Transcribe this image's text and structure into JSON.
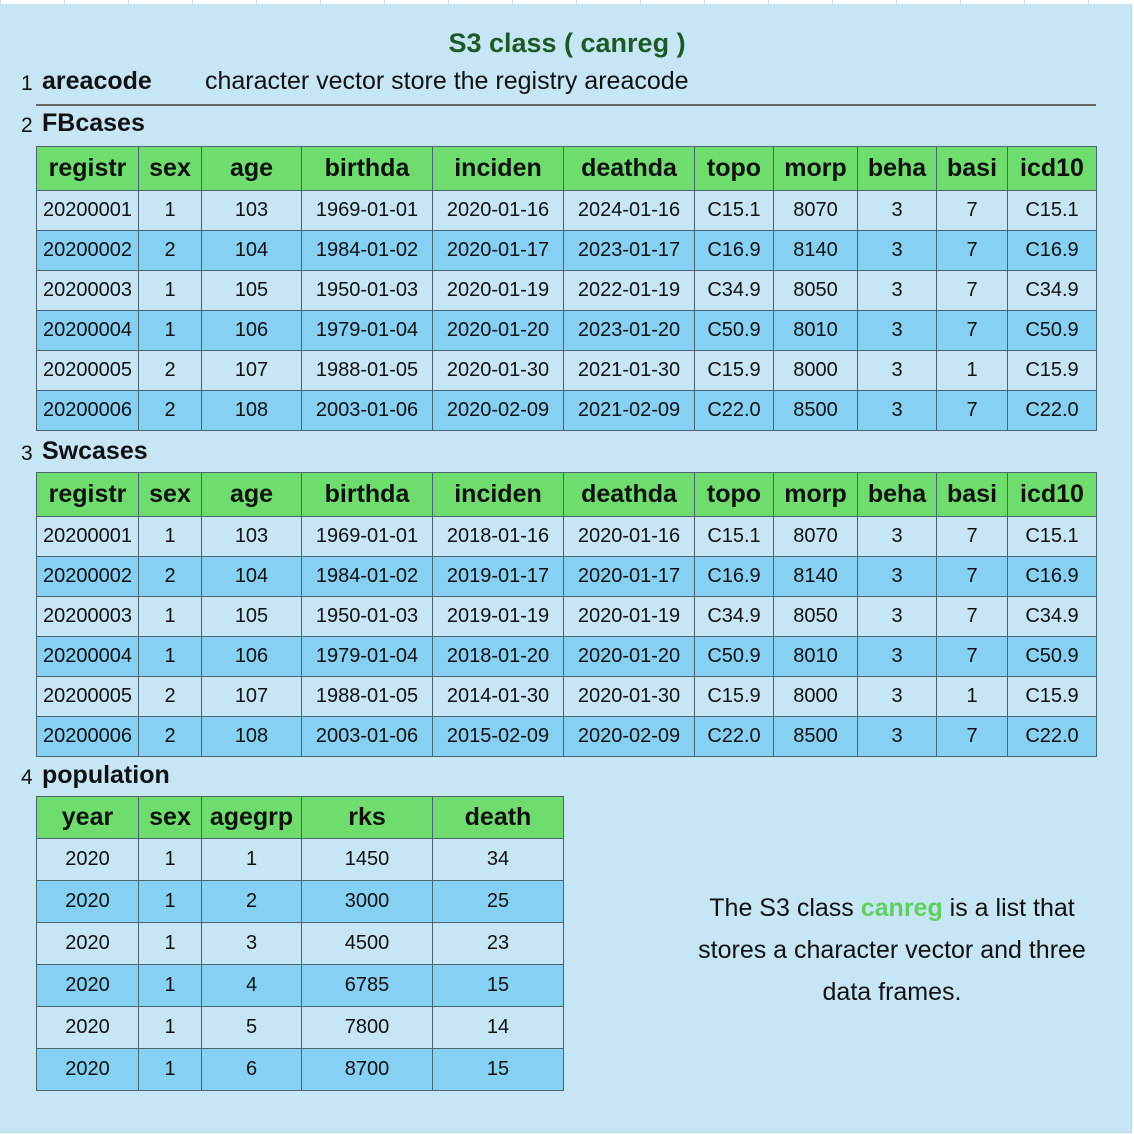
{
  "title": "S3 class ( canreg )",
  "sections": {
    "areacode": {
      "number": "1",
      "label": "areacode",
      "description": "character vector store the registry areacode"
    },
    "fbcases": {
      "number": "2",
      "label": "FBcases"
    },
    "swcases": {
      "number": "3",
      "label": "Swcases"
    },
    "population": {
      "number": "4",
      "label": "population"
    }
  },
  "case_columns": [
    "registr",
    "sex",
    "age",
    "birthda",
    "inciden",
    "deathda",
    "topo",
    "morp",
    "beha",
    "basi",
    "icd10"
  ],
  "fbcases_rows": [
    [
      "20200001",
      "1",
      "103",
      "1969-01-01",
      "2020-01-16",
      "2024-01-16",
      "C15.1",
      "8070",
      "3",
      "7",
      "C15.1"
    ],
    [
      "20200002",
      "2",
      "104",
      "1984-01-02",
      "2020-01-17",
      "2023-01-17",
      "C16.9",
      "8140",
      "3",
      "7",
      "C16.9"
    ],
    [
      "20200003",
      "1",
      "105",
      "1950-01-03",
      "2020-01-19",
      "2022-01-19",
      "C34.9",
      "8050",
      "3",
      "7",
      "C34.9"
    ],
    [
      "20200004",
      "1",
      "106",
      "1979-01-04",
      "2020-01-20",
      "2023-01-20",
      "C50.9",
      "8010",
      "3",
      "7",
      "C50.9"
    ],
    [
      "20200005",
      "2",
      "107",
      "1988-01-05",
      "2020-01-30",
      "2021-01-30",
      "C15.9",
      "8000",
      "3",
      "1",
      "C15.9"
    ],
    [
      "20200006",
      "2",
      "108",
      "2003-01-06",
      "2020-02-09",
      "2021-02-09",
      "C22.0",
      "8500",
      "3",
      "7",
      "C22.0"
    ]
  ],
  "swcases_rows": [
    [
      "20200001",
      "1",
      "103",
      "1969-01-01",
      "2018-01-16",
      "2020-01-16",
      "C15.1",
      "8070",
      "3",
      "7",
      "C15.1"
    ],
    [
      "20200002",
      "2",
      "104",
      "1984-01-02",
      "2019-01-17",
      "2020-01-17",
      "C16.9",
      "8140",
      "3",
      "7",
      "C16.9"
    ],
    [
      "20200003",
      "1",
      "105",
      "1950-01-03",
      "2019-01-19",
      "2020-01-19",
      "C34.9",
      "8050",
      "3",
      "7",
      "C34.9"
    ],
    [
      "20200004",
      "1",
      "106",
      "1979-01-04",
      "2018-01-20",
      "2020-01-20",
      "C50.9",
      "8010",
      "3",
      "7",
      "C50.9"
    ],
    [
      "20200005",
      "2",
      "107",
      "1988-01-05",
      "2014-01-30",
      "2020-01-30",
      "C15.9",
      "8000",
      "3",
      "1",
      "C15.9"
    ],
    [
      "20200006",
      "2",
      "108",
      "2003-01-06",
      "2015-02-09",
      "2020-02-09",
      "C22.0",
      "8500",
      "3",
      "7",
      "C22.0"
    ]
  ],
  "population_columns": [
    "year",
    "sex",
    "agegrp",
    "rks",
    "death"
  ],
  "population_rows": [
    [
      "2020",
      "1",
      "1",
      "1450",
      "34"
    ],
    [
      "2020",
      "1",
      "2",
      "3000",
      "25"
    ],
    [
      "2020",
      "1",
      "3",
      "4500",
      "23"
    ],
    [
      "2020",
      "1",
      "4",
      "6785",
      "15"
    ],
    [
      "2020",
      "1",
      "5",
      "7800",
      "14"
    ],
    [
      "2020",
      "1",
      "6",
      "8700",
      "15"
    ]
  ],
  "note": {
    "before": "The S3 class ",
    "highlight": "canreg",
    "after": " is a list that stores a character vector and three data frames."
  },
  "colors": {
    "background": "#c6e6f6",
    "header_green": "#6edd6e",
    "row_blue": "#86d0f4",
    "title_green": "#1e5a24",
    "highlight_green": "#5ed05e"
  }
}
